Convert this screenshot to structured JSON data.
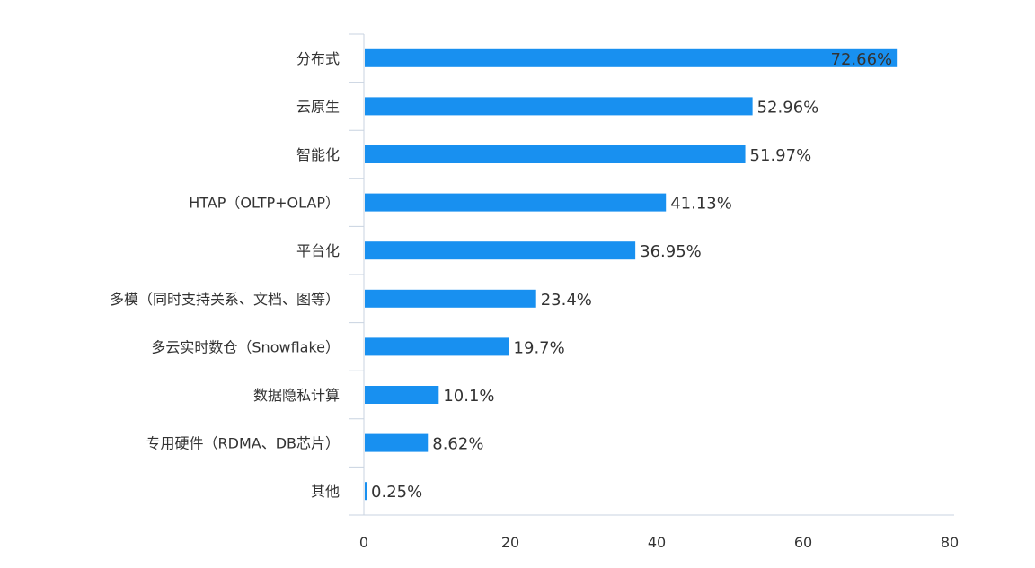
{
  "chart_data": {
    "type": "bar",
    "orientation": "horizontal",
    "categories": [
      "分布式",
      "云原生",
      "智能化",
      "HTAP（OLTP+OLAP）",
      "平台化",
      "多模（同时支持关系、文档、图等）",
      "多云实时数仓（Snowflake）",
      "数据隐私计算",
      "专用硬件（RDMA、DB芯片）",
      "其他"
    ],
    "values": [
      72.66,
      52.96,
      51.97,
      41.13,
      36.95,
      23.4,
      19.7,
      10.1,
      8.62,
      0.25
    ],
    "data_labels": [
      "72.66%",
      "52.96%",
      "51.97%",
      "41.13%",
      "36.95%",
      "23.4%",
      "19.7%",
      "10.1%",
      "8.62%",
      "0.25%"
    ],
    "x_ticks": [
      "0",
      "20",
      "40",
      "60",
      "80"
    ],
    "xlim": [
      0,
      80
    ],
    "grid": false,
    "bar_color": "#1890f0"
  }
}
